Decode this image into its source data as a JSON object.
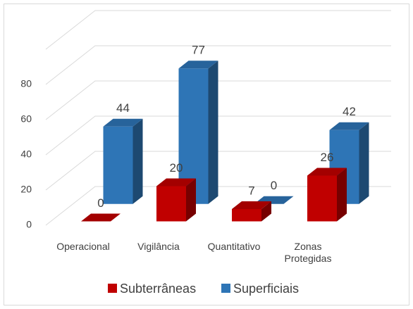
{
  "chart_data": {
    "type": "bar3d",
    "categories": [
      "Operacional",
      "Vigilância",
      "Quantitativo",
      "Zonas Protegidas"
    ],
    "series": [
      {
        "name": "Subterrâneas",
        "color": "#c00000",
        "values": [
          0,
          20,
          7,
          26
        ]
      },
      {
        "name": "Superficiais",
        "color": "#2e75b6",
        "values": [
          44,
          77,
          0,
          42
        ]
      }
    ],
    "ylim": [
      0,
      100
    ],
    "yticks": [
      0,
      20,
      40,
      60,
      80
    ],
    "grid": true,
    "legend": "bottom"
  }
}
